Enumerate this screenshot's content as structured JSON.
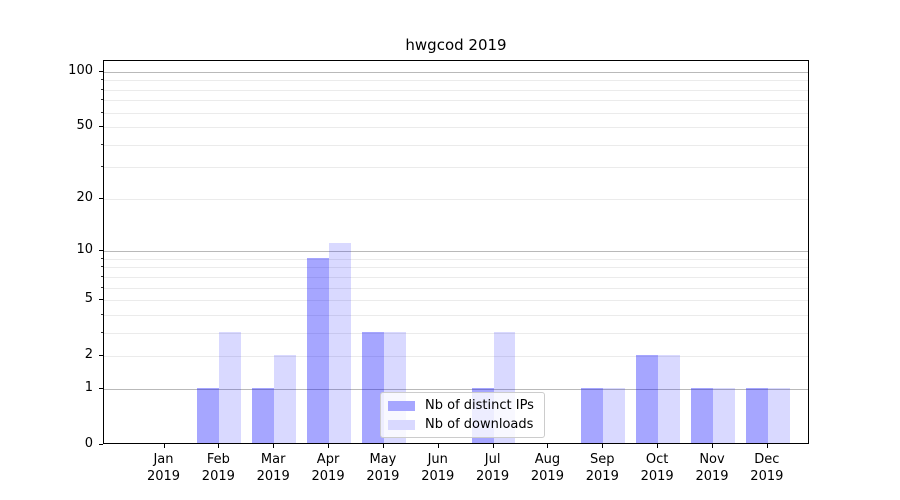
{
  "title": "hwgcod 2019",
  "chart_data": {
    "type": "bar",
    "title": "hwgcod 2019",
    "categories": [
      "Jan 2019",
      "Feb 2019",
      "Mar 2019",
      "Apr 2019",
      "May 2019",
      "Jun 2019",
      "Jul 2019",
      "Aug 2019",
      "Sep 2019",
      "Oct 2019",
      "Nov 2019",
      "Dec 2019"
    ],
    "series": [
      {
        "name": "Nb of distinct IPs",
        "color": "rgba(0,0,255,0.35)",
        "color_hex": "#a6a6ff",
        "values": [
          0,
          1,
          1,
          9,
          3,
          0,
          1,
          0,
          1,
          2,
          1,
          1
        ]
      },
      {
        "name": "Nb of downloads",
        "color": "rgba(0,0,255,0.15)",
        "color_hex": "#d9d9ff",
        "values": [
          0,
          3,
          2,
          11,
          3,
          0,
          3,
          0,
          1,
          2,
          1,
          1
        ]
      }
    ],
    "yscale": "log1p",
    "ylim": [
      0,
      115
    ],
    "yticks": [
      0,
      1,
      2,
      5,
      10,
      20,
      50,
      100
    ],
    "major_gridline_values": [
      1,
      10,
      100
    ],
    "minor_yticks": [
      3,
      4,
      6,
      7,
      8,
      9,
      30,
      40,
      60,
      70,
      80,
      90
    ],
    "grid": true,
    "legend_position": "lower center",
    "colors": {
      "grid_major": "#b9b9b9",
      "grid_minor": "#ebebeb",
      "spine": "#000000",
      "legend_border": "#cccccc"
    }
  }
}
